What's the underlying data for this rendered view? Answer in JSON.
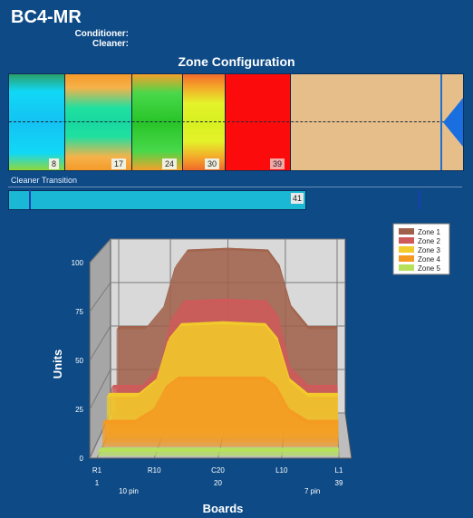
{
  "app": {
    "title": "BC4-MR",
    "conditioner_label": "Conditioner:",
    "cleaner_label": "Cleaner:"
  },
  "zone_config": {
    "title": "Zone Configuration",
    "markers": [
      "8",
      "17",
      "24",
      "30",
      "39"
    ]
  },
  "cleaner_transition": {
    "label": "Cleaner Transition",
    "value": "41"
  },
  "chart_data": {
    "type": "area",
    "title": "",
    "xlabel": "Boards",
    "ylabel": "Units",
    "ylim": [
      0,
      100
    ],
    "yticks": [
      "0",
      "25",
      "50",
      "75",
      "100"
    ],
    "xticks": [
      "R1",
      "R10",
      "C20",
      "L10",
      "L1"
    ],
    "xticks_num": [
      "1",
      "20",
      "39"
    ],
    "pin_labels": [
      "10 pin",
      "7 pin"
    ],
    "legend_position": "top-right",
    "colors": {
      "Zone 1": "#a0614a",
      "Zone 2": "#cf5a5a",
      "Zone 3": "#f2cc2a",
      "Zone 4": "#f49a22",
      "Zone 5": "#b6e25a"
    },
    "series": [
      {
        "name": "Zone 1",
        "x": [
          1,
          3,
          6,
          9,
          11,
          13,
          20,
          27,
          29,
          31,
          34,
          37,
          39
        ],
        "values": [
          50,
          50,
          50,
          62,
          85,
          94,
          95,
          94,
          85,
          62,
          50,
          50,
          50
        ]
      },
      {
        "name": "Zone 2",
        "x": [
          1,
          3,
          6,
          9,
          11,
          13,
          20,
          27,
          29,
          31,
          34,
          37,
          39
        ],
        "values": [
          22,
          22,
          22,
          32,
          60,
          69,
          70,
          69,
          60,
          32,
          22,
          22,
          22
        ]
      },
      {
        "name": "Zone 3",
        "x": [
          1,
          3,
          6,
          9,
          11,
          13,
          20,
          27,
          29,
          31,
          34,
          37,
          39
        ],
        "values": [
          22,
          22,
          22,
          30,
          52,
          60,
          61,
          60,
          52,
          30,
          22,
          22,
          22
        ]
      },
      {
        "name": "Zone 4",
        "x": [
          1,
          3,
          6,
          9,
          11,
          13,
          20,
          27,
          29,
          31,
          34,
          37,
          39
        ],
        "values": [
          12,
          12,
          12,
          18,
          30,
          35,
          35,
          35,
          30,
          18,
          12,
          12,
          12
        ]
      },
      {
        "name": "Zone 5",
        "x": [
          1,
          3,
          6,
          9,
          11,
          13,
          20,
          27,
          29,
          31,
          34,
          37,
          39
        ],
        "values": [
          2,
          2,
          2,
          2,
          2,
          2,
          2,
          2,
          2,
          2,
          2,
          2,
          2
        ]
      }
    ]
  }
}
